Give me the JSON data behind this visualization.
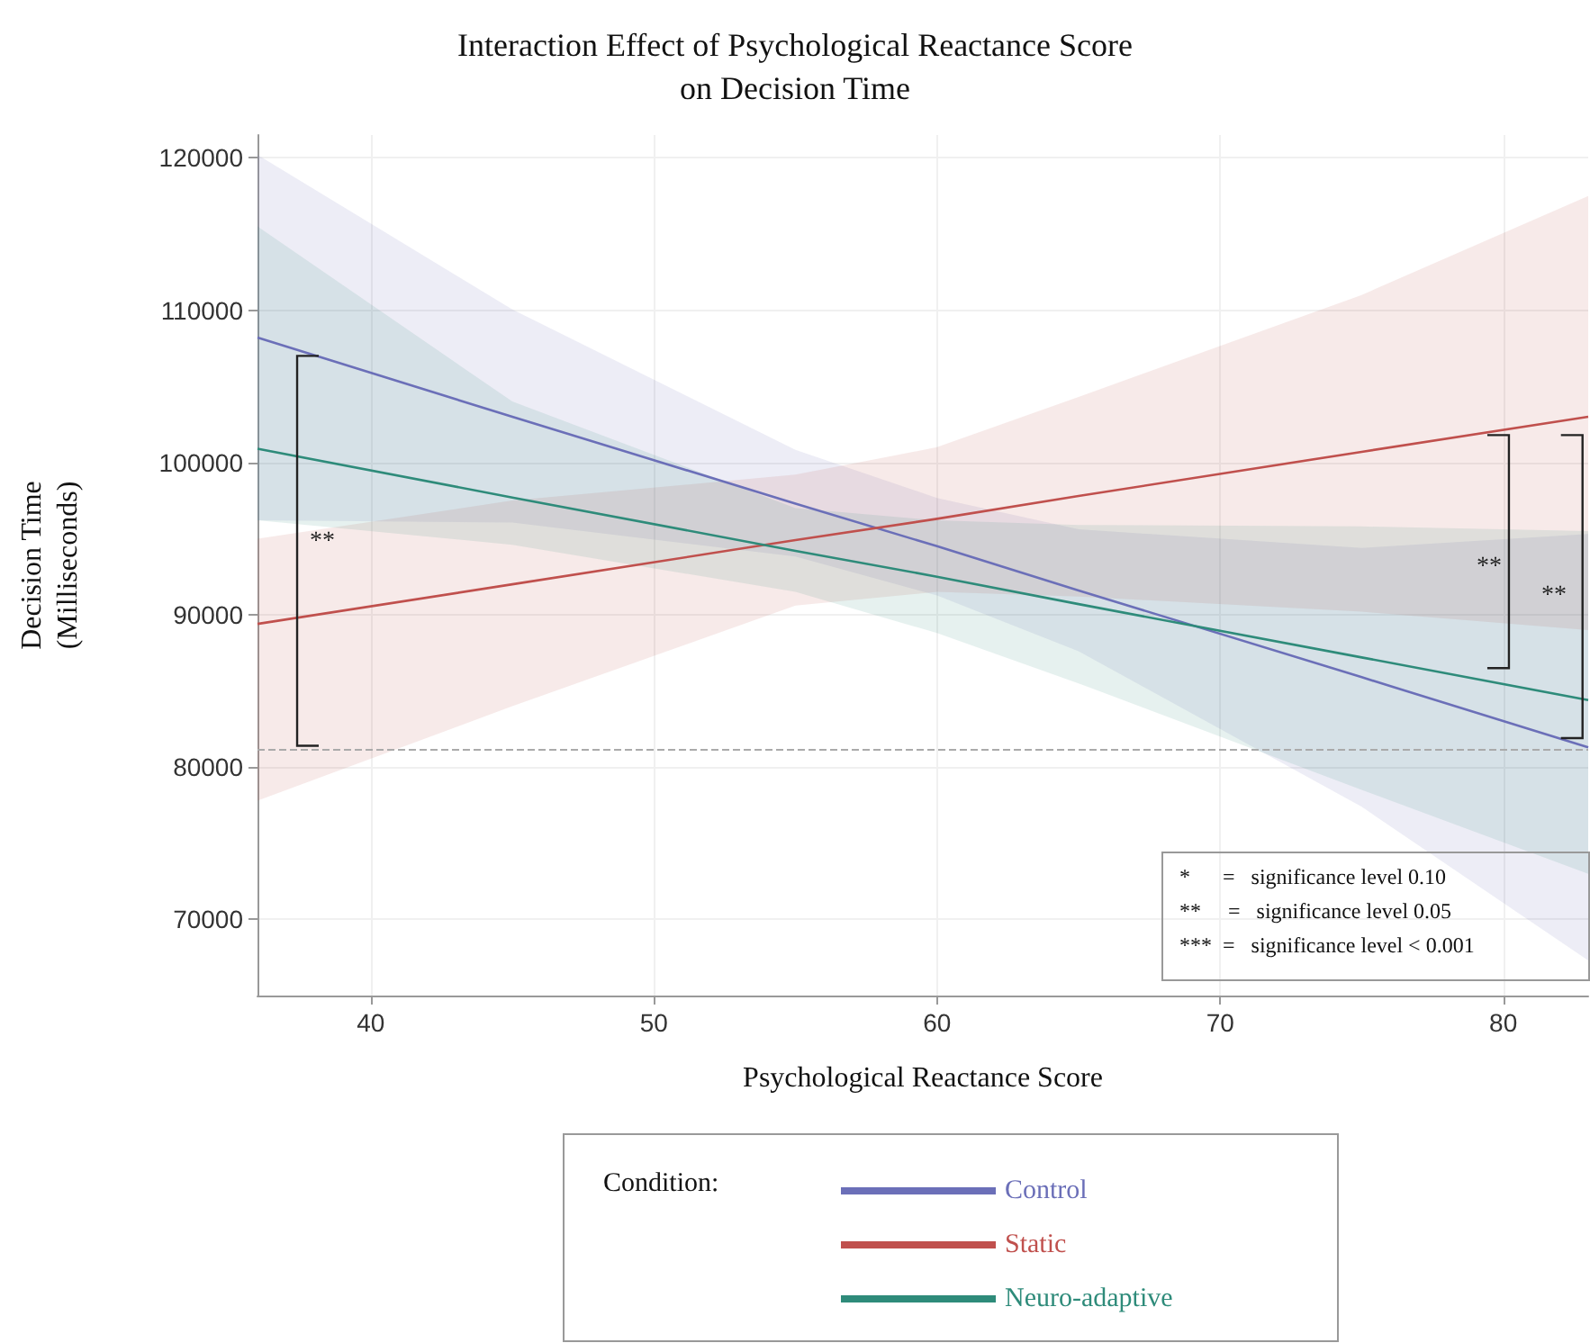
{
  "chart_data": {
    "type": "line",
    "title": "Interaction Effect of Psychological Reactance Score\non Decision Time",
    "xlabel": "Psychological Reactance Score",
    "ylabel": "Decision Time\n(Milliseconds)",
    "legend_title": "Condition:",
    "x": [
      36,
      45,
      55,
      60,
      65,
      75,
      83
    ],
    "series": [
      {
        "name": "Control",
        "color": "#6b6fb8",
        "values": [
          108200,
          103000,
          97300,
          94500,
          91600,
          85900,
          81300
        ],
        "lower": [
          96200,
          96050,
          93830,
          91270,
          87610,
          77390,
          67300
        ],
        "upper": [
          120200,
          110050,
          100830,
          97670,
          95610,
          94390,
          95300
        ]
      },
      {
        "name": "Static",
        "color": "#c0504d",
        "values": [
          89400,
          92000,
          94900,
          96300,
          97800,
          100700,
          103000
        ],
        "lower": [
          77800,
          84000,
          90600,
          91500,
          91200,
          90200,
          89000
        ],
        "upper": [
          95000,
          97500,
          99200,
          101000,
          104300,
          111000,
          117500
        ]
      },
      {
        "name": "Neuro-adaptive",
        "color": "#2e8b7a",
        "values": [
          100900,
          97700,
          94200,
          92500,
          90700,
          87200,
          84400
        ],
        "lower": [
          96200,
          94600,
          91500,
          88800,
          85500,
          78500,
          73000
        ],
        "upper": [
          115500,
          104000,
          97000,
          96200,
          95900,
          95800,
          95500
        ]
      }
    ],
    "xlim": [
      36,
      83
    ],
    "xticks": [
      40,
      50,
      60,
      70,
      80
    ],
    "ylim": [
      65000,
      121500
    ],
    "yticks": [
      70000,
      80000,
      90000,
      100000,
      110000,
      120000
    ],
    "grid": true,
    "legend": "bottom",
    "marker": "none",
    "line_style": "solid",
    "ref_lines": [
      {
        "axis": "y",
        "value": 81200,
        "label": null,
        "color": "#aaaaaa",
        "line_style": "dashed"
      }
    ],
    "annotations": [
      "**",
      "**",
      "**",
      "*      =   significance level 0.10",
      "**     =   significance level 0.05",
      "***  =   significance level < 0.001"
    ]
  }
}
